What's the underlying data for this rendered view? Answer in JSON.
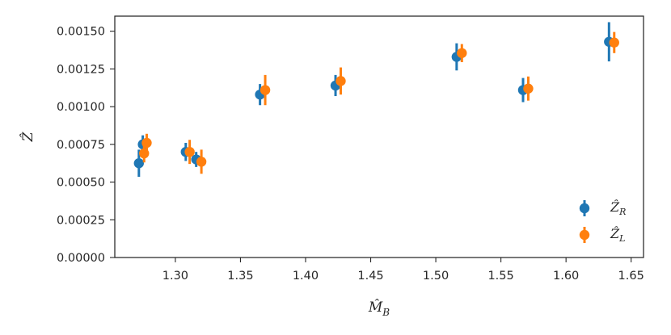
{
  "chart_data": {
    "type": "scatter",
    "x_axis": {
      "label": "M̂",
      "label_sub": "B",
      "ticks": [
        "1.30",
        "1.35",
        "1.40",
        "1.45",
        "1.50",
        "1.55",
        "1.60",
        "1.65"
      ],
      "range": [
        1.2535,
        1.6595
      ]
    },
    "y_axis": {
      "label": "Ẑ",
      "ticks": [
        "0.00000",
        "0.00025",
        "0.00050",
        "0.00075",
        "0.00100",
        "0.00125",
        "0.00150"
      ],
      "range": [
        0.0,
        0.0016
      ]
    },
    "grid": false,
    "legend_placement": "lower-right",
    "series": [
      {
        "name": "Ẑ",
        "name_sub": "R",
        "color": "#1f77b4",
        "points": [
          {
            "x": 1.272,
            "y": 0.000625,
            "err": 9e-05
          },
          {
            "x": 1.275,
            "y": 0.00075,
            "err": 6e-05
          },
          {
            "x": 1.308,
            "y": 0.0007,
            "err": 6e-05
          },
          {
            "x": 1.316,
            "y": 0.00065,
            "err": 5e-05
          },
          {
            "x": 1.365,
            "y": 0.00108,
            "err": 7e-05
          },
          {
            "x": 1.423,
            "y": 0.00114,
            "err": 7e-05
          },
          {
            "x": 1.516,
            "y": 0.00133,
            "err": 9e-05
          },
          {
            "x": 1.567,
            "y": 0.00111,
            "err": 8e-05
          },
          {
            "x": 1.633,
            "y": 0.00143,
            "err": 0.00013
          }
        ]
      },
      {
        "name": "Ẑ",
        "name_sub": "L",
        "color": "#ff7f0e",
        "points": [
          {
            "x": 1.276,
            "y": 0.00069,
            "err": 6e-05
          },
          {
            "x": 1.278,
            "y": 0.00076,
            "err": 6e-05
          },
          {
            "x": 1.311,
            "y": 0.0007,
            "err": 8e-05
          },
          {
            "x": 1.32,
            "y": 0.000635,
            "err": 8e-05
          },
          {
            "x": 1.369,
            "y": 0.00111,
            "err": 0.0001
          },
          {
            "x": 1.427,
            "y": 0.00117,
            "err": 9e-05
          },
          {
            "x": 1.52,
            "y": 0.001355,
            "err": 6e-05
          },
          {
            "x": 1.571,
            "y": 0.00112,
            "err": 8e-05
          },
          {
            "x": 1.637,
            "y": 0.001425,
            "err": 7e-05
          }
        ]
      }
    ]
  }
}
